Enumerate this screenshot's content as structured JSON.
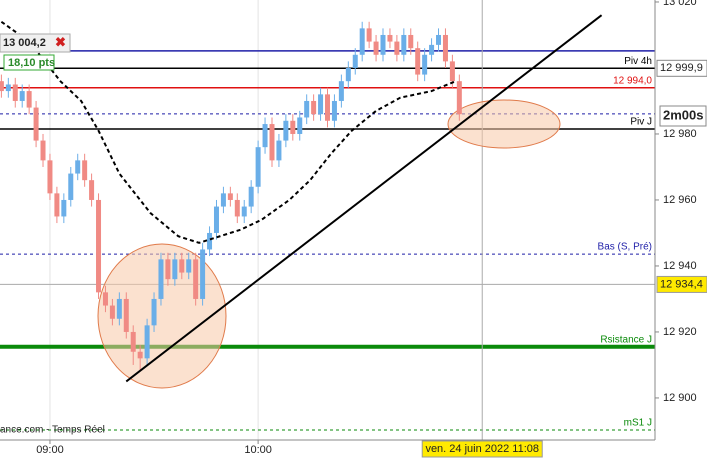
{
  "chart_data": {
    "type": "candlestick",
    "xlim": [
      -14.4,
      174.4
    ],
    "ylim": [
      12881.8,
      13020.6
    ],
    "xticks": [
      {
        "value": 0,
        "label": "09:00"
      },
      {
        "value": 60,
        "label": "10:00"
      }
    ],
    "yticks": [
      {
        "value": 13020,
        "label": "13 020"
      },
      {
        "value": 12980,
        "label": "12 980"
      },
      {
        "value": 12960,
        "label": "12 960"
      },
      {
        "value": 12940,
        "label": "12 940"
      },
      {
        "value": 12920,
        "label": "12 920"
      },
      {
        "value": 12900,
        "label": "12 900"
      }
    ],
    "up_color": "#6aaee8",
    "down_color": "#f08a84",
    "x": [
      -14,
      -12,
      -10,
      -8,
      -6,
      -4,
      -2,
      0,
      2,
      4,
      6,
      8,
      10,
      12,
      14,
      16,
      18,
      20,
      22,
      24,
      26,
      28,
      30,
      32,
      34,
      36,
      38,
      40,
      42,
      44,
      46,
      48,
      50,
      52,
      54,
      56,
      58,
      60,
      62,
      64,
      66,
      68,
      70,
      72,
      74,
      76,
      78,
      80,
      82,
      84,
      86,
      88,
      90,
      92,
      94,
      96,
      98,
      100,
      102,
      104,
      106,
      108,
      110,
      112,
      114,
      116,
      118
    ],
    "open": [
      12996,
      12993,
      12995,
      12990,
      12993,
      12988,
      12978,
      12972,
      12962,
      12955,
      12960,
      12968,
      12972,
      12966,
      12960,
      12932,
      12928,
      12924,
      12930,
      12920,
      12914,
      12912,
      12922,
      12930,
      12942,
      12936,
      12942,
      12938,
      12942,
      12930,
      12945,
      12950,
      12958,
      12962,
      12960,
      12955,
      12958,
      12964,
      12976,
      12983,
      12972,
      12978,
      12984,
      12980,
      12985,
      12990,
      12986,
      12992,
      12984,
      12990,
      12996,
      13000,
      13004,
      13012,
      13008,
      13004,
      13010,
      13008,
      13004,
      13010,
      13006,
      12998,
      13004,
      13007,
      13010,
      13002,
      12996
    ],
    "high": [
      12998,
      12997,
      12997,
      12995,
      12995,
      12990,
      12980,
      12974,
      12964,
      12962,
      12970,
      12974,
      12974,
      12968,
      12962,
      12934,
      12930,
      12932,
      12932,
      12922,
      12916,
      12924,
      12932,
      12944,
      12944,
      12944,
      12944,
      12944,
      12944,
      12947,
      12952,
      12960,
      12964,
      12964,
      12962,
      12960,
      12966,
      12978,
      12985,
      12985,
      12980,
      12986,
      12986,
      12987,
      12992,
      12992,
      12994,
      12994,
      12992,
      12998,
      13002,
      13006,
      13014,
      13014,
      13010,
      13012,
      13012,
      13010,
      13012,
      13012,
      13008,
      13006,
      13009,
      13012,
      13012,
      13004,
      12998
    ],
    "low": [
      12991,
      12991,
      12988,
      12988,
      12986,
      12976,
      12970,
      12960,
      12953,
      12953,
      12958,
      12966,
      12964,
      12958,
      12930,
      12926,
      12922,
      12922,
      12918,
      12910,
      12908,
      12910,
      12920,
      12928,
      12934,
      12934,
      12936,
      12936,
      12928,
      12928,
      12943,
      12948,
      12956,
      12958,
      12953,
      12953,
      12956,
      12962,
      12974,
      12970,
      12970,
      12976,
      12978,
      12978,
      12983,
      12984,
      12984,
      12982,
      12982,
      12988,
      12994,
      12998,
      13002,
      13006,
      13002,
      13002,
      13006,
      13002,
      13002,
      13004,
      12996,
      12996,
      13002,
      13005,
      13000,
      12994,
      12984
    ],
    "close": [
      12993,
      12995,
      12990,
      12993,
      12988,
      12978,
      12972,
      12962,
      12955,
      12960,
      12968,
      12972,
      12966,
      12960,
      12932,
      12928,
      12924,
      12930,
      12920,
      12914,
      12912,
      12922,
      12930,
      12942,
      12936,
      12942,
      12938,
      12942,
      12930,
      12945,
      12950,
      12958,
      12962,
      12960,
      12955,
      12958,
      12964,
      12976,
      12983,
      12972,
      12978,
      12984,
      12980,
      12985,
      12990,
      12986,
      12992,
      12984,
      12990,
      12996,
      13000,
      13004,
      13012,
      13008,
      13004,
      13010,
      13008,
      13004,
      13010,
      13006,
      12998,
      13004,
      13007,
      13010,
      13002,
      12996,
      12986
    ],
    "moving_average": {
      "color": "#000000",
      "x": [
        -14,
        -6,
        3,
        9,
        14,
        20,
        29,
        37,
        43,
        49,
        55,
        61,
        69,
        75,
        81,
        87,
        94,
        101,
        110,
        117
      ],
      "values": [
        13014,
        13008,
        12996,
        12990,
        12981,
        12968,
        12956,
        12949,
        12947,
        12949,
        12951,
        12954,
        12960,
        12966,
        12974,
        12981,
        12987,
        12991,
        12993,
        12996
      ]
    },
    "trendline": {
      "color": "#000000",
      "x": [
        22,
        159
      ],
      "values": [
        12905,
        13016
      ]
    },
    "levels": [
      {
        "value": 13005.2,
        "color": "#1f1fa8",
        "style": "solid"
      },
      {
        "value": 12999.9,
        "color": "#000000",
        "style": "solid",
        "label": "Piv 4h",
        "axis_label": "12 999,9"
      },
      {
        "value": 12994.0,
        "color": "#e01010",
        "style": "solid",
        "label": "12 994,0"
      },
      {
        "value": 12986.1,
        "color": "#1f1fa8",
        "style": "dashed"
      },
      {
        "value": 12981.5,
        "color": "#000000",
        "style": "solid",
        "label": "Piv J"
      },
      {
        "value": 12943.6,
        "color": "#1f1fa8",
        "style": "dashed",
        "label": "Bas (S, Pré)"
      },
      {
        "value": 12915.5,
        "color": "#0a8a0a",
        "style": "thick",
        "label": "Rsistance J"
      },
      {
        "value": 12890.3,
        "color": "#0a8a0a",
        "style": "dashed",
        "label": "mS1 J"
      }
    ],
    "crosshair": {
      "x": 124.6,
      "y": 12934.4,
      "x_label": "ven. 24 juin 2022 11:08",
      "y_label": "12 934,4"
    },
    "annotations": {
      "position": "13 004,2",
      "points": "18,10 pts",
      "timer": "2m00s",
      "source": "ance.com - Temps Réel"
    }
  }
}
